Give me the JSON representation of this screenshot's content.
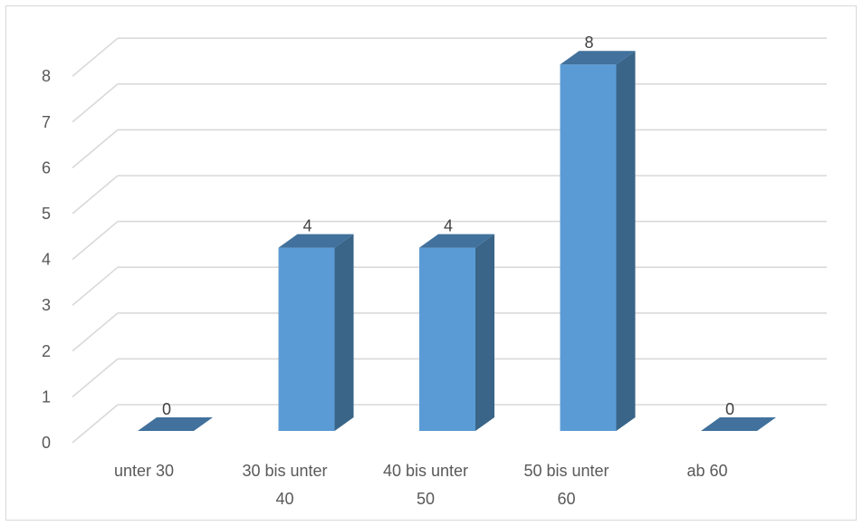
{
  "chart_data": {
    "type": "bar",
    "style": "3d-column",
    "categories": [
      "unter 30",
      "30 bis unter 40",
      "40 bis unter 50",
      "50 bis unter 60",
      "ab 60"
    ],
    "category_label_lines": [
      [
        "unter 30"
      ],
      [
        "30 bis unter",
        "40"
      ],
      [
        "40 bis unter",
        "50"
      ],
      [
        "50 bis unter",
        "60"
      ],
      [
        "ab 60"
      ]
    ],
    "values": [
      0,
      4,
      4,
      8,
      0
    ],
    "data_labels": [
      "0",
      "4",
      "4",
      "8",
      "0"
    ],
    "y_ticks": [
      "0",
      "1",
      "2",
      "3",
      "4",
      "5",
      "6",
      "7",
      "8"
    ],
    "ylim": [
      0,
      8
    ],
    "grid": true,
    "legend": false,
    "colors": {
      "front": "#5b9bd5",
      "side": "#3a6588",
      "top": "#41719c",
      "grid": "#d9d9d9",
      "text": "#595959"
    }
  }
}
